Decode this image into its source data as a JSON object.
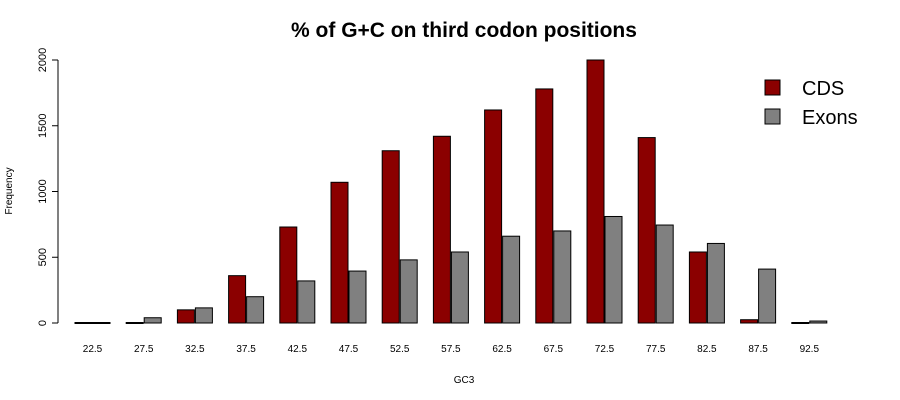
{
  "chart_data": {
    "type": "bar",
    "title": "% of G+C on third codon positions",
    "xlabel": "GC3",
    "ylabel": "Frequency",
    "categories": [
      "22.5",
      "27.5",
      "32.5",
      "37.5",
      "42.5",
      "47.5",
      "52.5",
      "57.5",
      "62.5",
      "67.5",
      "72.5",
      "77.5",
      "82.5",
      "87.5",
      "92.5"
    ],
    "series": [
      {
        "name": "CDS",
        "color": "#8b0000",
        "values": [
          0,
          0,
          100,
          360,
          730,
          1070,
          1310,
          1420,
          1620,
          1780,
          2000,
          1410,
          540,
          25,
          0
        ]
      },
      {
        "name": "Exons",
        "color": "#808080",
        "values": [
          0,
          40,
          115,
          200,
          320,
          395,
          480,
          540,
          660,
          700,
          810,
          745,
          605,
          410,
          15
        ]
      }
    ],
    "ylim": [
      0,
      2000
    ],
    "yticks": [
      0,
      500,
      1000,
      1500,
      2000
    ],
    "legend_position": "top-right",
    "grid": false
  }
}
